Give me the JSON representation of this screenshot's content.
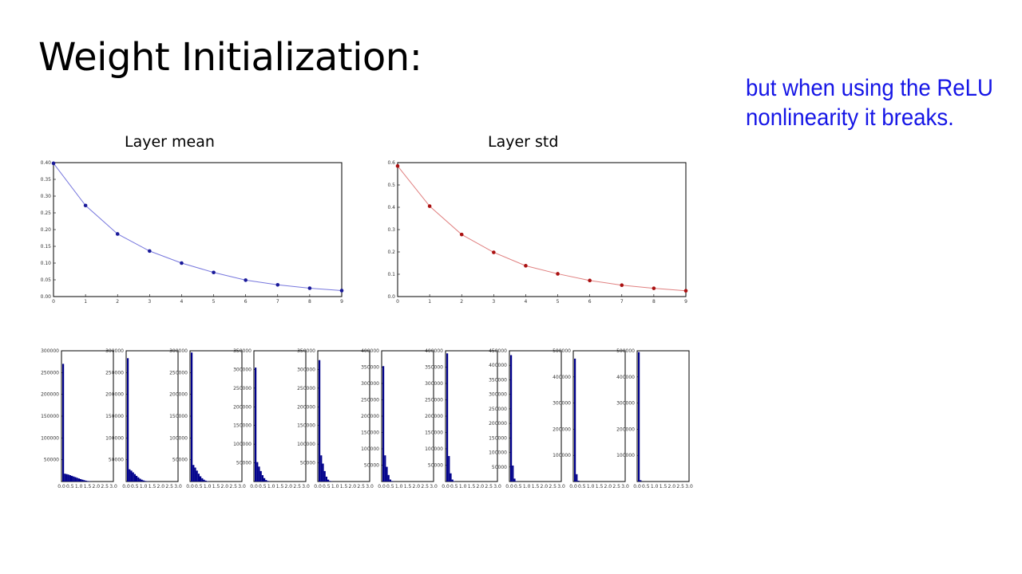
{
  "slide": {
    "title": "Weight Initialization:",
    "note_line1": "but when using the ReLU",
    "note_line2": "nonlinearity it breaks."
  },
  "colors": {
    "mean_line": "#7777dd",
    "mean_point": "#1a1a99",
    "std_line": "#e08080",
    "std_point": "#aa1111",
    "hist_bar": "#00008b",
    "note": "#1515e6"
  },
  "chart_data": [
    {
      "type": "line",
      "title": "Layer mean",
      "x": [
        0,
        1,
        2,
        3,
        4,
        5,
        6,
        7,
        8,
        9
      ],
      "y": [
        0.398,
        0.272,
        0.187,
        0.136,
        0.1,
        0.072,
        0.049,
        0.035,
        0.025,
        0.018
      ],
      "xlim": [
        0,
        9
      ],
      "ylim": [
        0,
        0.4
      ],
      "xticks": [
        "0",
        "1",
        "2",
        "3",
        "4",
        "5",
        "6",
        "7",
        "8",
        "9"
      ],
      "yticks": [
        "0.00",
        "0.05",
        "0.10",
        "0.15",
        "0.20",
        "0.25",
        "0.30",
        "0.35",
        "0.40"
      ],
      "grid": false
    },
    {
      "type": "line",
      "title": "Layer std",
      "x": [
        0,
        1,
        2,
        3,
        4,
        5,
        6,
        7,
        8,
        9
      ],
      "y": [
        0.585,
        0.405,
        0.278,
        0.198,
        0.138,
        0.102,
        0.072,
        0.051,
        0.037,
        0.026
      ],
      "xlim": [
        0,
        9
      ],
      "ylim": [
        0,
        0.6
      ],
      "xticks": [
        "0",
        "1",
        "2",
        "3",
        "4",
        "5",
        "6",
        "7",
        "8",
        "9"
      ],
      "yticks": [
        "0.0",
        "0.1",
        "0.2",
        "0.3",
        "0.4",
        "0.5",
        "0.6"
      ],
      "grid": false
    },
    {
      "type": "bar",
      "subtype": "histogram-grid",
      "xlim": [
        0,
        3.0
      ],
      "xticks": [
        "0.0",
        "0.5",
        "1.0",
        "1.5",
        "2.0",
        "2.5",
        "3.0"
      ],
      "panels": [
        {
          "ymax": 300000,
          "yticks": [
            "50000",
            "100000",
            "150000",
            "200000",
            "250000",
            "300000"
          ],
          "values": [
            270000,
            18000,
            17000,
            16000,
            14500,
            13000,
            11500,
            10000,
            8500,
            7000,
            5600,
            4300,
            3100,
            2000,
            1200,
            600,
            250,
            80
          ]
        },
        {
          "ymax": 300000,
          "yticks": [
            "50000",
            "100000",
            "150000",
            "200000",
            "250000",
            "300000"
          ],
          "values": [
            283000,
            28000,
            25000,
            21000,
            17000,
            13000,
            9500,
            6500,
            4200,
            2500,
            1300,
            600,
            250,
            80
          ]
        },
        {
          "ymax": 300000,
          "yticks": [
            "50000",
            "100000",
            "150000",
            "200000",
            "250000",
            "300000"
          ],
          "values": [
            296000,
            38000,
            32000,
            25000,
            18000,
            12000,
            7500,
            4200,
            2000,
            800,
            250
          ]
        },
        {
          "ymax": 350000,
          "yticks": [
            "50000",
            "100000",
            "150000",
            "200000",
            "250000",
            "300000",
            "350000"
          ],
          "values": [
            305000,
            52000,
            40000,
            28000,
            17000,
            9000,
            4000,
            1500,
            400
          ]
        },
        {
          "ymax": 350000,
          "yticks": [
            "50000",
            "100000",
            "150000",
            "200000",
            "250000",
            "300000",
            "350000"
          ],
          "values": [
            325000,
            70000,
            48000,
            28000,
            13000,
            5000,
            1500,
            400
          ]
        },
        {
          "ymax": 400000,
          "yticks": [
            "50000",
            "100000",
            "150000",
            "200000",
            "250000",
            "300000",
            "350000",
            "400000"
          ],
          "values": [
            353000,
            80000,
            45000,
            20000,
            6000,
            1500,
            300
          ]
        },
        {
          "ymax": 400000,
          "yticks": [
            "50000",
            "100000",
            "150000",
            "200000",
            "250000",
            "300000",
            "350000",
            "400000"
          ],
          "values": [
            392000,
            78000,
            25000,
            6000,
            1200
          ]
        },
        {
          "ymax": 450000,
          "yticks": [
            "50000",
            "100000",
            "150000",
            "200000",
            "250000",
            "300000",
            "350000",
            "400000",
            "450000"
          ],
          "values": [
            435000,
            55000,
            10000,
            1500
          ]
        },
        {
          "ymax": 500000,
          "yticks": [
            "100000",
            "200000",
            "300000",
            "400000",
            "500000"
          ],
          "values": [
            470000,
            28000,
            3000
          ]
        },
        {
          "ymax": 500000,
          "yticks": [
            "100000",
            "200000",
            "300000",
            "400000",
            "500000"
          ],
          "values": [
            495000,
            5000
          ]
        }
      ]
    }
  ]
}
